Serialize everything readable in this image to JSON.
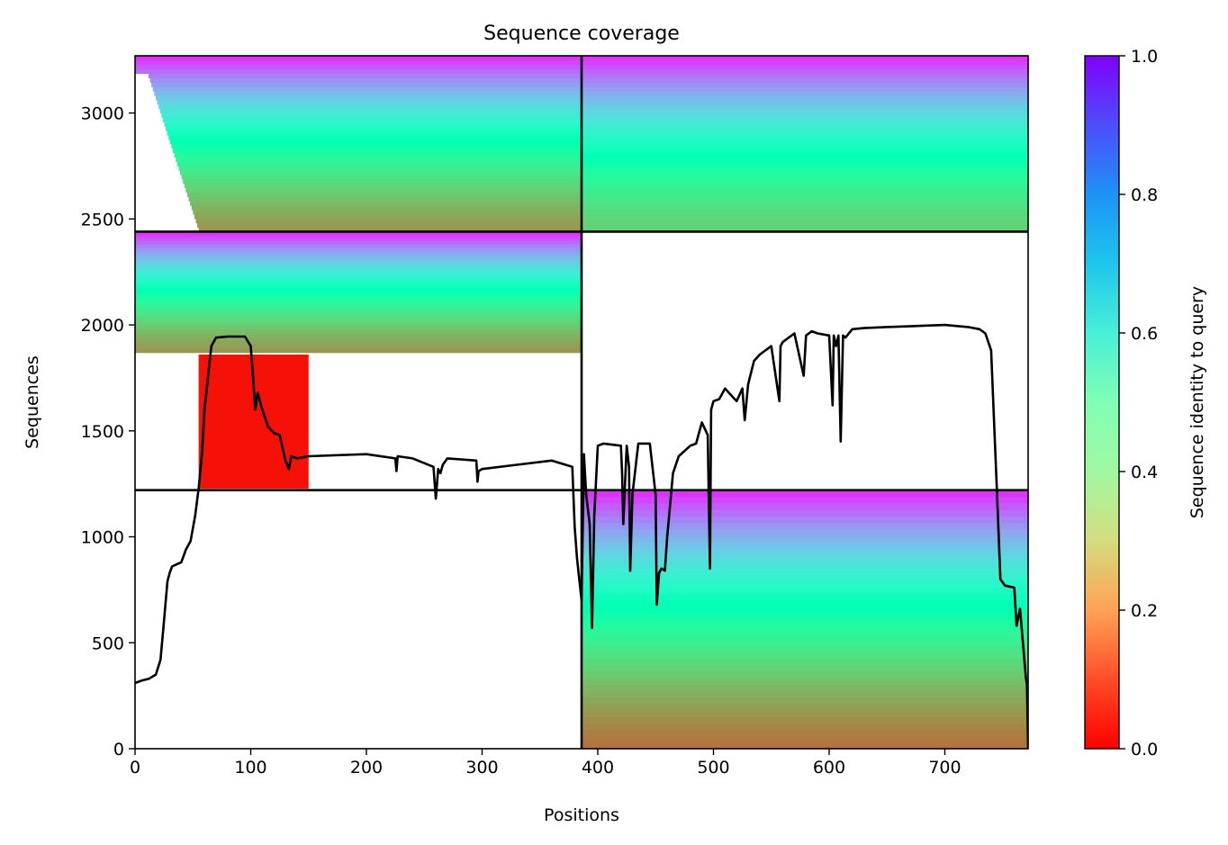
{
  "chart_data": {
    "type": "heatmap",
    "title": "Sequence coverage",
    "xlabel": "Positions",
    "ylabel": "Sequences",
    "xlim": [
      0,
      772
    ],
    "ylim": [
      0,
      3270
    ],
    "x_ticks": [
      0,
      100,
      200,
      300,
      400,
      500,
      600,
      700
    ],
    "y_ticks": [
      0,
      500,
      1000,
      1500,
      2000,
      2500,
      3000
    ],
    "grid": false,
    "colorbar": {
      "label": "Sequence identity to query",
      "colormap": "rainbow_r",
      "range": [
        0.0,
        1.0
      ],
      "ticks": [
        "0.0",
        "0.2",
        "0.4",
        "0.6",
        "0.8",
        "1.0"
      ]
    },
    "dividers": {
      "vertical_at_position": 386,
      "horizontal_left_at_sequence": [
        1220,
        2440
      ],
      "horizontal_right_at_sequence": [
        1220,
        2440
      ]
    },
    "blocks": [
      {
        "name": "",
        "x_range": [
          0,
          386
        ],
        "y_range": [
          2440,
          3270
        ],
        "identity_top": 0.95,
        "identity_bottom": 0.2,
        "left_gap_to": 55
      },
      {
        "name": "",
        "x_range": [
          386,
          772
        ],
        "y_range": [
          2440,
          3270
        ],
        "identity_top": 0.95,
        "identity_bottom": 0.3
      },
      {
        "name": "",
        "x_range": [
          0,
          386
        ],
        "y_range": [
          1870,
          2440
        ],
        "identity_top": 0.95,
        "identity_bottom": 0.2
      },
      {
        "name": "",
        "x_range": [
          55,
          150
        ],
        "y_range": [
          1230,
          1860
        ],
        "identity_top": 0.02,
        "identity_bottom": 0.02
      },
      {
        "name": "",
        "x_range": [
          386,
          772
        ],
        "y_range": [
          0,
          1220
        ],
        "identity_top": 0.95,
        "identity_bottom": 0.15
      }
    ],
    "coverage_line": {
      "color": "#000000",
      "x": [
        0,
        5,
        8,
        12,
        18,
        22,
        25,
        28,
        30,
        32,
        36,
        40,
        44,
        48,
        52,
        55,
        58,
        60,
        62,
        64,
        66,
        68,
        70,
        80,
        95,
        100,
        102,
        104,
        106,
        110,
        115,
        120,
        125,
        130,
        133,
        135,
        140,
        150,
        200,
        225,
        226,
        227,
        240,
        258,
        260,
        262,
        264,
        266,
        270,
        295,
        296,
        297,
        300,
        330,
        360,
        378,
        380,
        382,
        384,
        386,
        388,
        390,
        393,
        395,
        397,
        400,
        405,
        420,
        421,
        422,
        425,
        427,
        428,
        430,
        435,
        445,
        450,
        451,
        453,
        455,
        458,
        460,
        465,
        470,
        480,
        485,
        490,
        495,
        497,
        498,
        500,
        505,
        510,
        520,
        525,
        527,
        530,
        535,
        540,
        550,
        557,
        558,
        560,
        570,
        578,
        580,
        585,
        590,
        600,
        603,
        604,
        606,
        608,
        610,
        612,
        614,
        620,
        630,
        650,
        700,
        720,
        730,
        735,
        740,
        745,
        748,
        752,
        760,
        762,
        765,
        770,
        771,
        772
      ],
      "y": [
        310,
        320,
        325,
        330,
        350,
        420,
        600,
        790,
        830,
        860,
        870,
        880,
        940,
        980,
        1100,
        1230,
        1400,
        1600,
        1700,
        1800,
        1900,
        1920,
        1940,
        1945,
        1945,
        1900,
        1750,
        1600,
        1680,
        1600,
        1520,
        1490,
        1480,
        1360,
        1320,
        1380,
        1370,
        1380,
        1390,
        1370,
        1310,
        1380,
        1370,
        1330,
        1180,
        1320,
        1300,
        1340,
        1370,
        1360,
        1260,
        1310,
        1320,
        1340,
        1360,
        1330,
        1050,
        900,
        800,
        700,
        1390,
        1200,
        1060,
        570,
        1100,
        1430,
        1440,
        1430,
        1300,
        1060,
        1430,
        1330,
        840,
        1200,
        1440,
        1440,
        1200,
        680,
        830,
        850,
        840,
        1000,
        1300,
        1380,
        1430,
        1440,
        1540,
        1480,
        850,
        1600,
        1640,
        1650,
        1700,
        1640,
        1700,
        1550,
        1720,
        1830,
        1860,
        1900,
        1640,
        1900,
        1920,
        1960,
        1760,
        1950,
        1970,
        1960,
        1950,
        1620,
        1950,
        1900,
        1950,
        1450,
        1950,
        1940,
        1980,
        1985,
        1990,
        2000,
        1990,
        1980,
        1960,
        1880,
        1220,
        800,
        770,
        760,
        580,
        660,
        340,
        300,
        0
      ]
    }
  }
}
